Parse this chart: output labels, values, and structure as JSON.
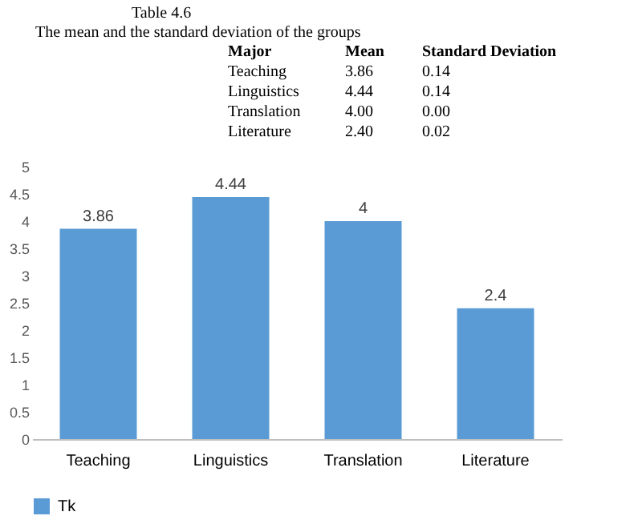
{
  "chart_data": {
    "type": "bar",
    "categories": [
      "Teaching",
      "Linguistics",
      "Translation",
      "Literature"
    ],
    "series": [
      {
        "name": "Tk",
        "color": "#5b9bd5",
        "values": [
          3.86,
          4.44,
          4,
          2.4
        ]
      }
    ],
    "ylim": [
      0,
      5
    ],
    "yticks": [
      0,
      0.5,
      1,
      1.5,
      2,
      2.5,
      3,
      3.5,
      4,
      4.5,
      5
    ],
    "grid": false,
    "legend": "bottom",
    "data_labels": true,
    "annotations": [
      "Table 4.6",
      "The mean and the standard deviation of the groups",
      "Major",
      "Mean",
      "Standard Deviation",
      "Teaching",
      "3.86",
      "0.14",
      "Linguistics",
      "4.44",
      "0.14",
      "Translation",
      "4.00",
      "0.00",
      "Literature",
      "2.40",
      "0.02"
    ]
  }
}
